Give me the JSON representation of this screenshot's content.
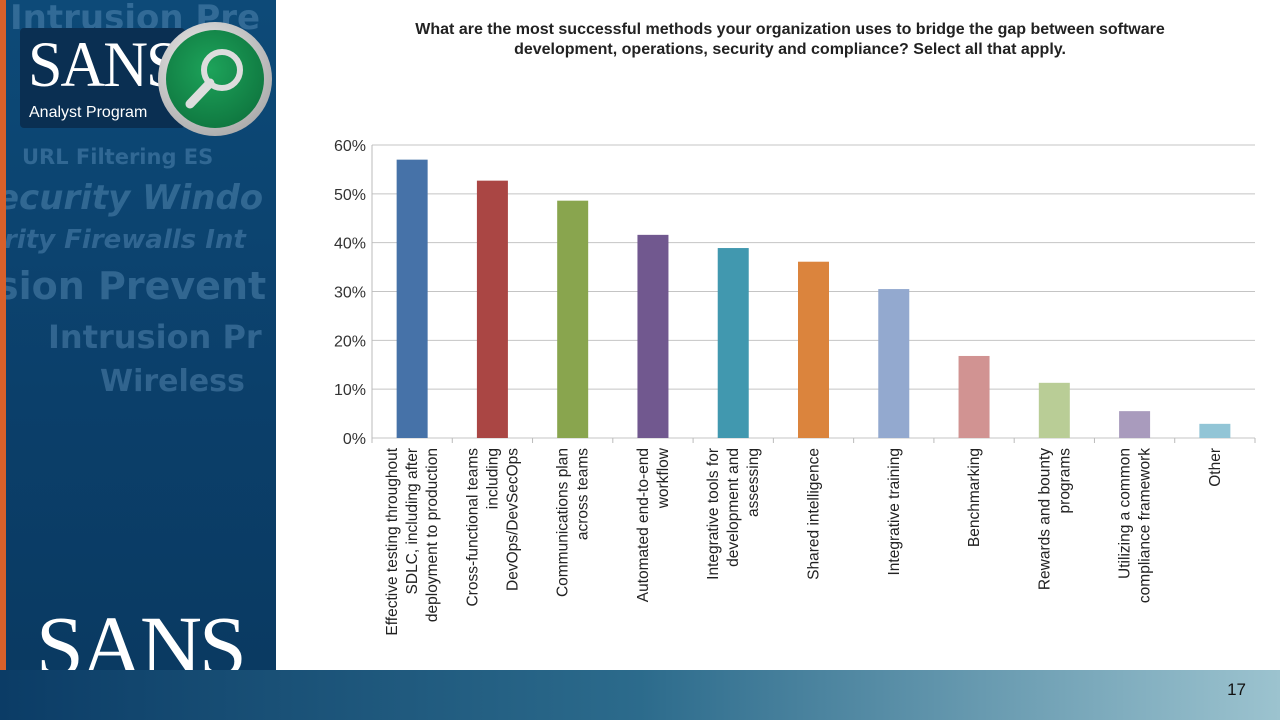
{
  "slide": {
    "page_number": "17",
    "logo_top": "SANS",
    "logo_subtitle": "Analyst Program",
    "logo_bottom": "SANS",
    "background_words": [
      "Intrusion Pre",
      "URL Filtering ES",
      "ecurity Windo",
      "rity Firewalls Int",
      "sion Prevent",
      "Intrusion Pr",
      "Wireless"
    ]
  },
  "chart_data": {
    "type": "bar",
    "title": "What are the most successful methods your organization uses to bridge the gap between software development, operations, security and compliance? Select all that apply.",
    "categories": [
      [
        "Effective testing throughout",
        "SDLC, including after",
        "deployment to production"
      ],
      [
        "Cross-functional teams",
        "including",
        "DevOps/DevSecOps"
      ],
      [
        "Communications plan",
        "across teams"
      ],
      [
        "Automated end-to-end",
        "workflow"
      ],
      [
        "Integrative tools for",
        "development and",
        "assessing"
      ],
      [
        "Shared intelligence"
      ],
      [
        "Integrative training"
      ],
      [
        "Benchmarking"
      ],
      [
        "Rewards and bounty",
        "programs"
      ],
      [
        "Utilizing a common",
        "compliance framework"
      ],
      [
        "Other"
      ]
    ],
    "values": [
      57.0,
      52.7,
      48.6,
      41.6,
      38.9,
      36.1,
      30.5,
      16.8,
      11.3,
      5.5,
      2.9
    ],
    "colors": [
      "#4672a8",
      "#aa4644",
      "#89a54e",
      "#71588f",
      "#4198af",
      "#db843d",
      "#93a9cf",
      "#d19392",
      "#b9cd96",
      "#a99bbd",
      "#92c5d6"
    ],
    "ylim": [
      0,
      60
    ],
    "yticks": [
      "0%",
      "10%",
      "20%",
      "30%",
      "40%",
      "50%",
      "60%"
    ],
    "grid": true,
    "legend": "none"
  }
}
